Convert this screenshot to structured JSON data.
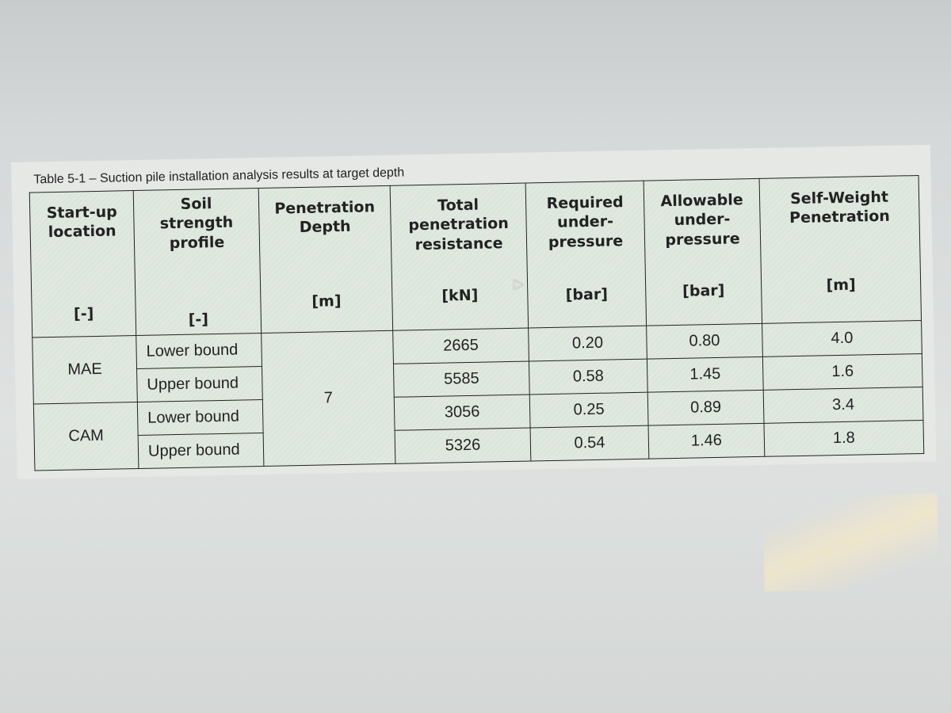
{
  "caption": "Table 5-1 – Suction pile installation analysis results at target depth",
  "headers": [
    {
      "label": "Start-up location",
      "unit": "[-]"
    },
    {
      "label": "Soil strength profile",
      "unit": "[-]"
    },
    {
      "label": "Penetration Depth",
      "unit": "[m]"
    },
    {
      "label": "Total penetration resistance",
      "unit": "[kN]"
    },
    {
      "label": "Required under-pressure",
      "unit": "[bar]"
    },
    {
      "label": "Allowable under-pressure",
      "unit": "[bar]"
    },
    {
      "label": "Self-Weight Penetration",
      "unit": "[m]"
    }
  ],
  "penetration_depth": "7",
  "locations": [
    "MAE",
    "CAM"
  ],
  "rows": [
    {
      "profile": "Lower bound",
      "resistance": "2665",
      "required": "0.20",
      "allowable": "0.80",
      "self_weight": "4.0"
    },
    {
      "profile": "Upper bound",
      "resistance": "5585",
      "required": "0.58",
      "allowable": "1.45",
      "self_weight": "1.6"
    },
    {
      "profile": "Lower bound",
      "resistance": "3056",
      "required": "0.25",
      "allowable": "0.89",
      "self_weight": "3.4"
    },
    {
      "profile": "Upper bound",
      "resistance": "5326",
      "required": "0.54",
      "allowable": "1.46",
      "self_weight": "1.8"
    }
  ]
}
